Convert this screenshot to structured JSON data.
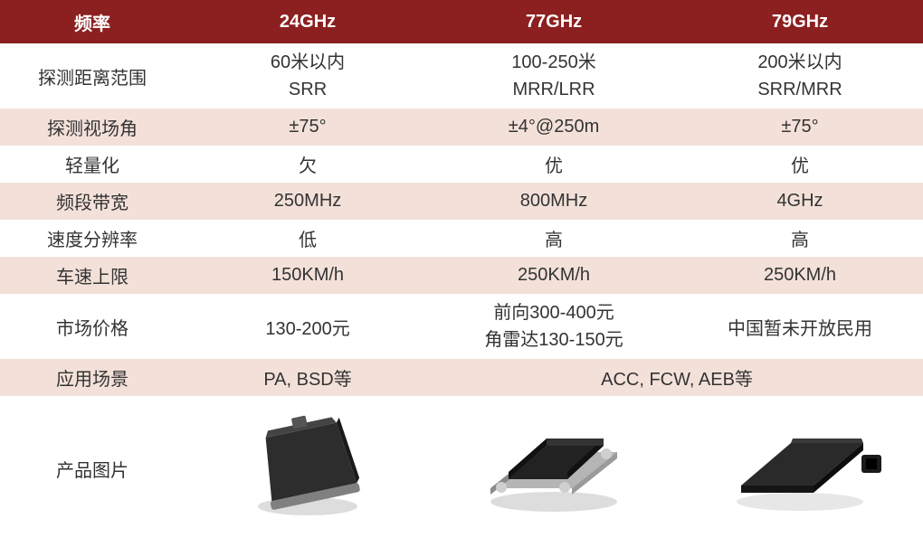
{
  "table": {
    "header_bg": "#8c1f1f",
    "header_fg": "#ffffff",
    "row_even_bg": "#f3e1d9",
    "row_odd_bg": "#ffffff",
    "text_color": "#333333",
    "font_size": 20,
    "columns": [
      "频率",
      "24GHz",
      "77GHz",
      "79GHz"
    ],
    "rows": [
      {
        "label": "探测距离范围",
        "bg": "odd",
        "cells": [
          {
            "lines": [
              "60米以内",
              "SRR"
            ]
          },
          {
            "lines": [
              "100-250米",
              "MRR/LRR"
            ]
          },
          {
            "lines": [
              "200米以内",
              "SRR/MRR"
            ]
          }
        ]
      },
      {
        "label": "探测视场角",
        "bg": "even",
        "cells": [
          {
            "lines": [
              "±75°"
            ]
          },
          {
            "lines": [
              "±4°@250m"
            ]
          },
          {
            "lines": [
              "±75°"
            ]
          }
        ]
      },
      {
        "label": "轻量化",
        "bg": "odd",
        "cells": [
          {
            "lines": [
              "欠"
            ]
          },
          {
            "lines": [
              "优"
            ]
          },
          {
            "lines": [
              "优"
            ]
          }
        ]
      },
      {
        "label": "频段带宽",
        "bg": "even",
        "cells": [
          {
            "lines": [
              "250MHz"
            ]
          },
          {
            "lines": [
              "800MHz"
            ]
          },
          {
            "lines": [
              "4GHz"
            ]
          }
        ]
      },
      {
        "label": "速度分辨率",
        "bg": "odd",
        "cells": [
          {
            "lines": [
              "低"
            ]
          },
          {
            "lines": [
              "高"
            ]
          },
          {
            "lines": [
              "高"
            ]
          }
        ]
      },
      {
        "label": "车速上限",
        "bg": "even",
        "cells": [
          {
            "lines": [
              "150KM/h"
            ]
          },
          {
            "lines": [
              "250KM/h"
            ]
          },
          {
            "lines": [
              "250KM/h"
            ]
          }
        ]
      },
      {
        "label": "市场价格",
        "bg": "odd",
        "cells": [
          {
            "lines": [
              "130-200元"
            ]
          },
          {
            "lines": [
              "前向300-400元",
              "角雷达130-150元"
            ]
          },
          {
            "lines": [
              "中国暂未开放民用"
            ]
          }
        ]
      },
      {
        "label": "应用场景",
        "bg": "even",
        "cells": [
          {
            "lines": [
              "PA, BSD等"
            ]
          },
          {
            "lines": [
              "ACC, FCW, AEB等"
            ],
            "span": 2
          }
        ]
      },
      {
        "label": "产品图片",
        "bg": "odd",
        "image_row": true,
        "cells": [
          {
            "product_image": "radar-24ghz",
            "color_body": "#2d2d2d",
            "color_base": "#808080"
          },
          {
            "product_image": "radar-77ghz",
            "color_body": "#222222",
            "color_base": "#b5b5b5"
          },
          {
            "product_image": "radar-79ghz",
            "color_body": "#2a2a2a",
            "color_base": "#1a1a1a"
          }
        ]
      }
    ]
  }
}
